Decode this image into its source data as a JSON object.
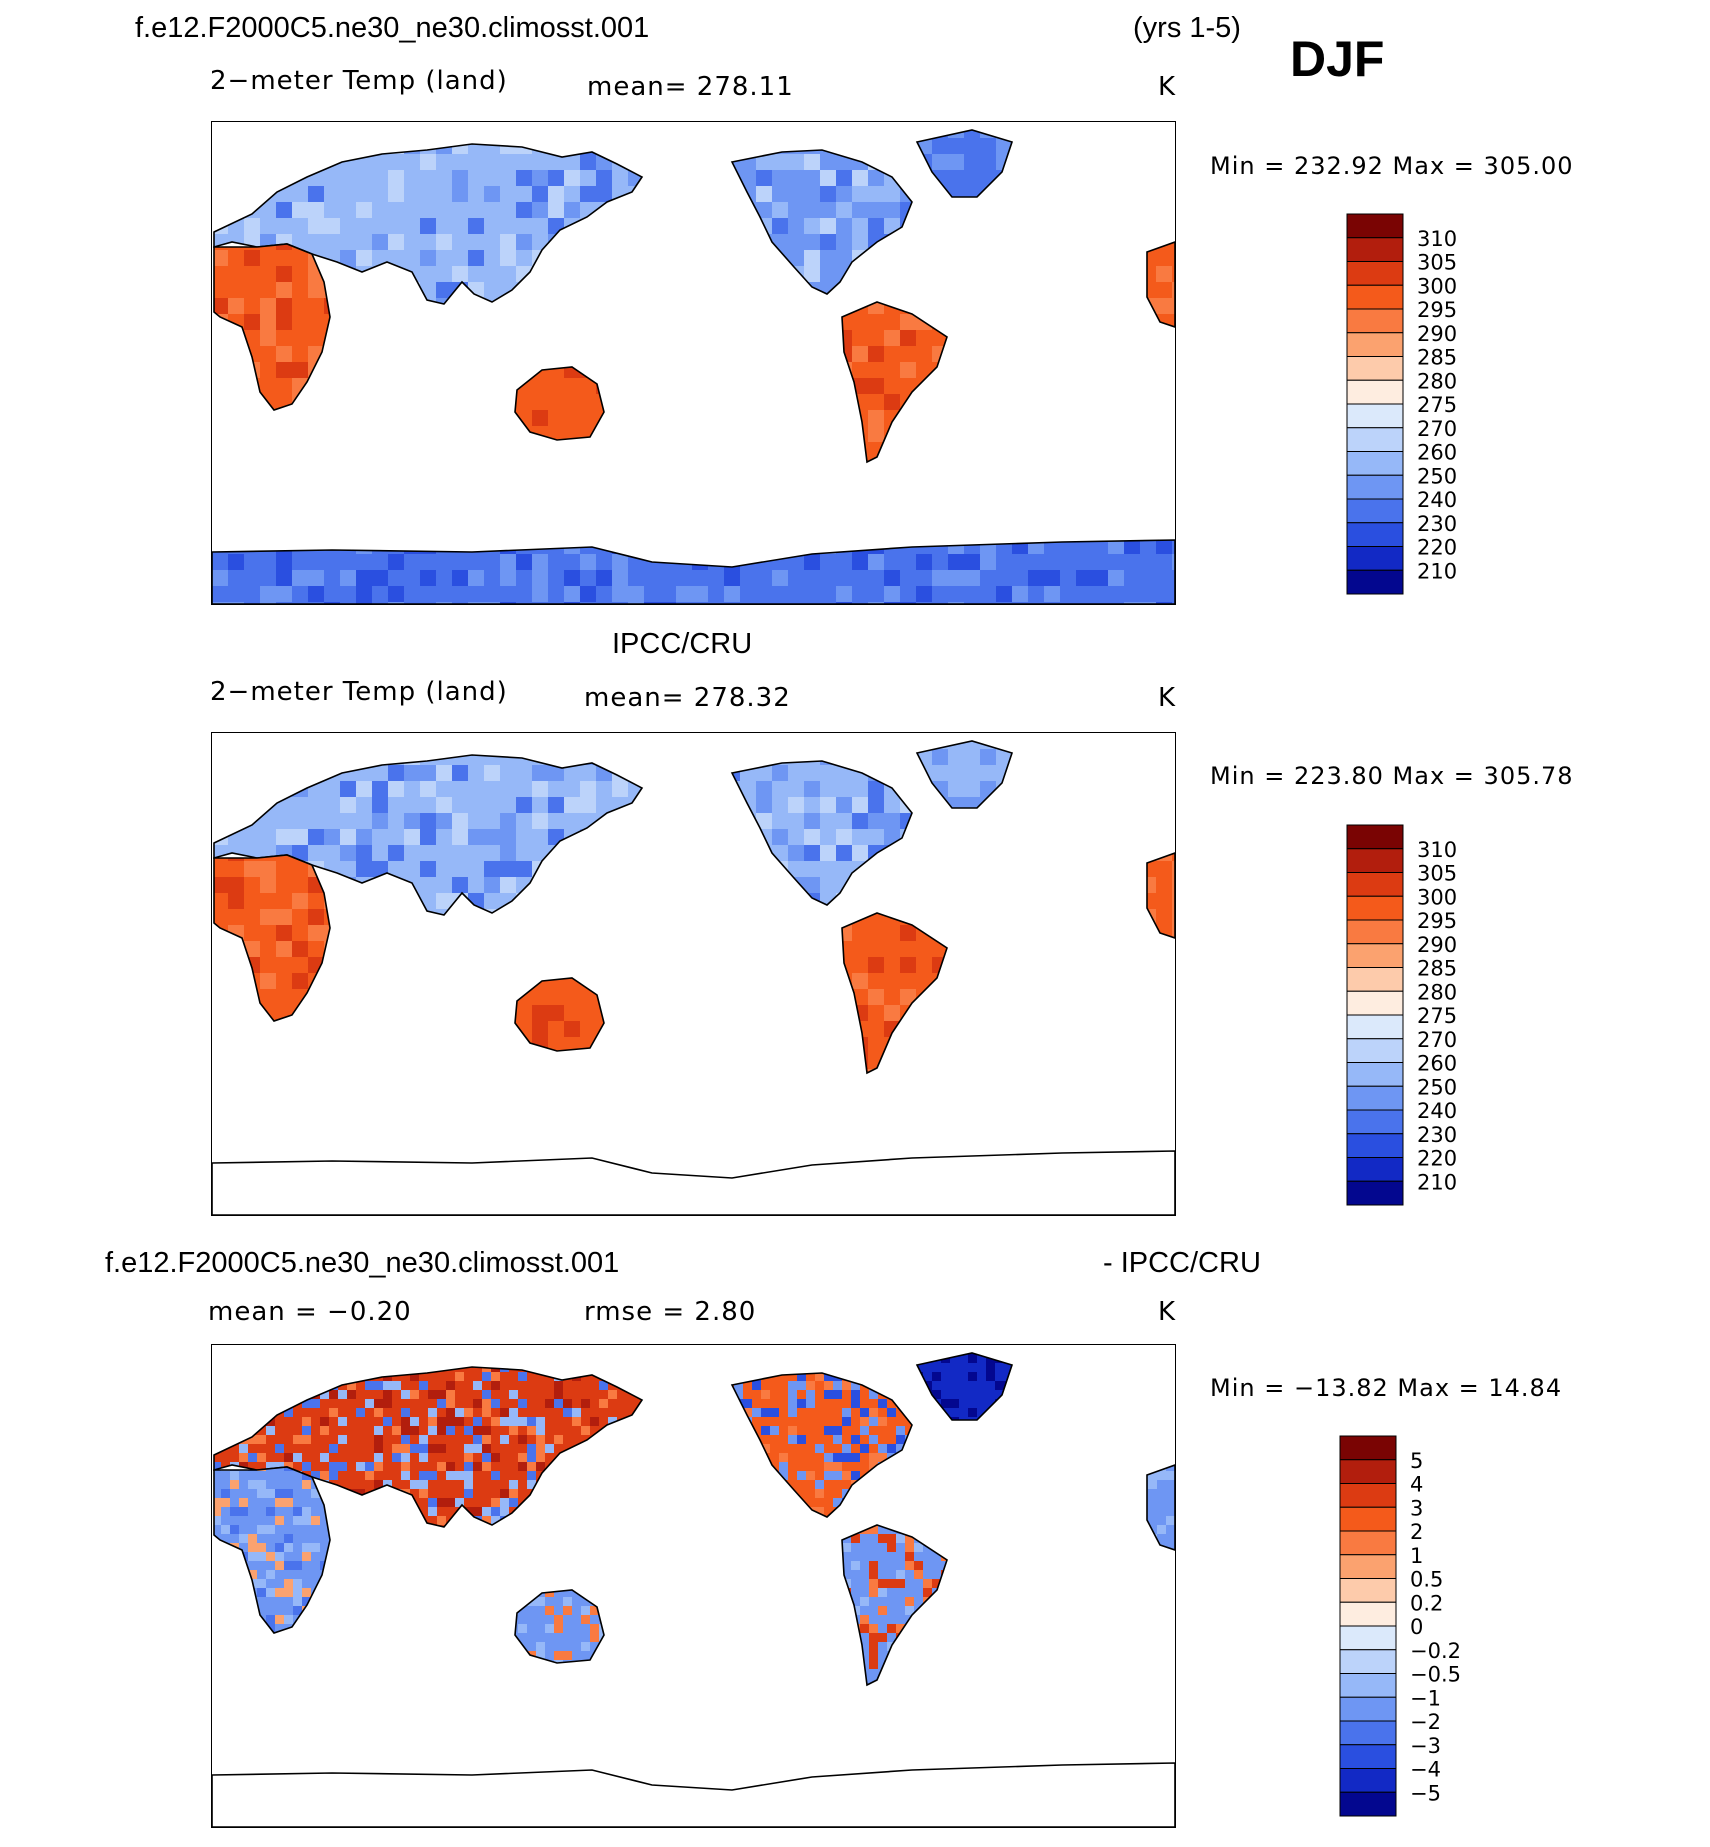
{
  "header": {
    "case_name": "f.e12.F2000C5.ne30_ne30.climosst.001",
    "years": "(yrs 1-5)",
    "season": "DJF"
  },
  "panels": [
    {
      "id": "model",
      "title": "",
      "left_label": "2−meter Temp (land)",
      "center_label": "mean= 278.11",
      "right_label": "K",
      "minmax": "Min = 232.92 Max = 305.00",
      "colorbar": {
        "labels": [
          "310",
          "305",
          "300",
          "295",
          "290",
          "285",
          "280",
          "275",
          "270",
          "260",
          "250",
          "240",
          "230",
          "220",
          "210"
        ],
        "colors": [
          "#7a0403",
          "#b21e0d",
          "#dc3b12",
          "#f45a1b",
          "#f97a41",
          "#fba26f",
          "#fdcbab",
          "#feede0",
          "#dbe9fb",
          "#bcd3fa",
          "#96b8f8",
          "#6e96f3",
          "#4a73ec",
          "#2a4fe0",
          "#1229c5",
          "#03078f"
        ]
      }
    },
    {
      "id": "obs",
      "title": "IPCC/CRU",
      "left_label": "2−meter Temp (land)",
      "center_label": "mean= 278.32",
      "right_label": "K",
      "minmax": "Min = 223.80 Max = 305.78",
      "colorbar": {
        "labels": [
          "310",
          "305",
          "300",
          "295",
          "290",
          "285",
          "280",
          "275",
          "270",
          "260",
          "250",
          "240",
          "230",
          "220",
          "210"
        ],
        "colors": [
          "#7a0403",
          "#b21e0d",
          "#dc3b12",
          "#f45a1b",
          "#f97a41",
          "#fba26f",
          "#fdcbab",
          "#feede0",
          "#dbe9fb",
          "#bcd3fa",
          "#96b8f8",
          "#6e96f3",
          "#4a73ec",
          "#2a4fe0",
          "#1229c5",
          "#03078f"
        ]
      }
    },
    {
      "id": "diff",
      "title_left": "f.e12.F2000C5.ne30_ne30.climosst.001",
      "title_right": "- IPCC/CRU",
      "left_label": "mean =   −0.20",
      "center_label": "rmse =    2.80",
      "right_label": "K",
      "minmax": "Min = −13.82 Max =   14.84",
      "colorbar": {
        "labels": [
          "5",
          "4",
          "3",
          "2",
          "1",
          "0.5",
          "0.2",
          "0",
          "−0.2",
          "−0.5",
          "−1",
          "−2",
          "−3",
          "−4",
          "−5"
        ],
        "colors": [
          "#7a0403",
          "#b21e0d",
          "#dc3b12",
          "#f45a1b",
          "#f97a41",
          "#fba26f",
          "#fdcbab",
          "#feede0",
          "#dbe9fb",
          "#bcd3fa",
          "#96b8f8",
          "#6e96f3",
          "#4a73ec",
          "#2a4fe0",
          "#1229c5",
          "#03078f"
        ]
      }
    }
  ]
}
